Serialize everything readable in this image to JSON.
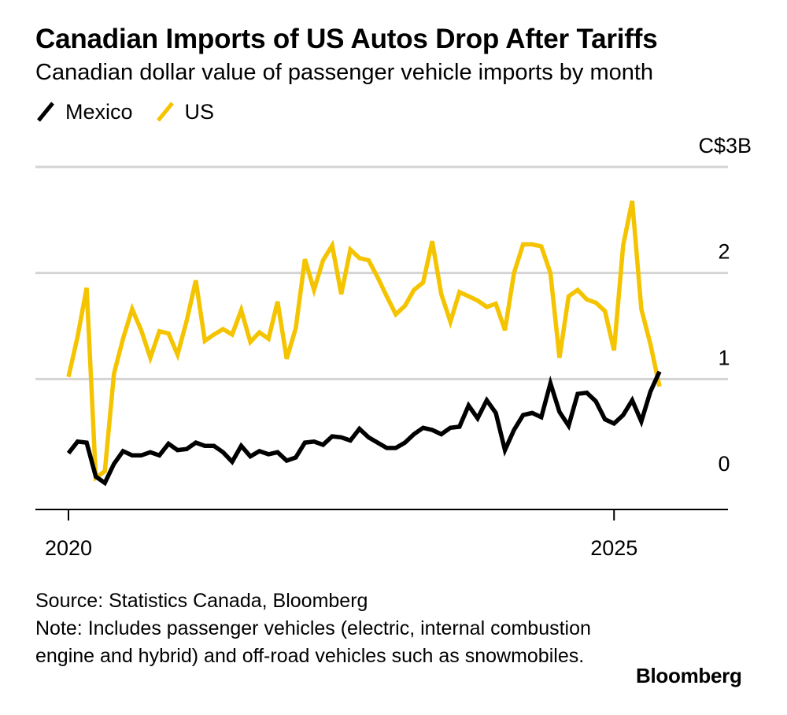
{
  "title": "Canadian Imports of US Autos Drop After Tariffs",
  "subtitle": "Canadian dollar value of passenger vehicle imports by month",
  "colors": {
    "mexico": "#000000",
    "us": "#f5c400",
    "grid": "#d4d4d4",
    "axis": "#000000"
  },
  "chart_data": {
    "type": "line",
    "title": "Canadian Imports of US Autos Drop After Tariffs",
    "subtitle": "Canadian dollar value of passenger vehicle imports by month",
    "ylabel": "C$ billions",
    "ylim": [
      -0.2,
      3
    ],
    "y_ticks": [
      {
        "value": 3,
        "label": "C$3B"
      },
      {
        "value": 2,
        "label": "2"
      },
      {
        "value": 1,
        "label": "1"
      },
      {
        "value": 0,
        "label": "0"
      }
    ],
    "x_ticks": [
      {
        "index": 0,
        "label": "2020"
      },
      {
        "index": 60,
        "label": "2025"
      }
    ],
    "x_start": "2020-01",
    "x_end": "2025-01",
    "series": [
      {
        "name": "Mexico",
        "color": "#000000",
        "values": [
          0.3,
          0.41,
          0.4,
          0.08,
          0.02,
          0.2,
          0.32,
          0.28,
          0.28,
          0.31,
          0.28,
          0.39,
          0.33,
          0.34,
          0.4,
          0.37,
          0.37,
          0.31,
          0.22,
          0.37,
          0.27,
          0.32,
          0.29,
          0.31,
          0.23,
          0.26,
          0.4,
          0.41,
          0.38,
          0.46,
          0.45,
          0.42,
          0.53,
          0.45,
          0.4,
          0.35,
          0.35,
          0.4,
          0.48,
          0.54,
          0.52,
          0.48,
          0.54,
          0.55,
          0.75,
          0.63,
          0.8,
          0.68,
          0.33,
          0.52,
          0.66,
          0.68,
          0.64,
          0.96,
          0.69,
          0.56,
          0.86,
          0.87,
          0.79,
          0.62,
          0.58,
          0.66,
          0.8,
          0.6,
          0.88,
          1.07
        ]
      },
      {
        "name": "US",
        "color": "#f5c400",
        "values": [
          1.02,
          1.4,
          1.86,
          0.07,
          0.13,
          1.05,
          1.38,
          1.66,
          1.46,
          1.2,
          1.45,
          1.43,
          1.23,
          1.55,
          1.93,
          1.36,
          1.42,
          1.47,
          1.42,
          1.65,
          1.35,
          1.44,
          1.38,
          1.73,
          1.19,
          1.48,
          2.13,
          1.84,
          2.12,
          2.26,
          1.8,
          2.22,
          2.14,
          2.12,
          1.96,
          1.78,
          1.61,
          1.69,
          1.84,
          1.91,
          2.3,
          1.8,
          1.54,
          1.82,
          1.78,
          1.74,
          1.68,
          1.71,
          1.46,
          2.0,
          2.27,
          2.27,
          2.25,
          2.0,
          1.2,
          1.78,
          1.84,
          1.75,
          1.72,
          1.64,
          1.27,
          2.26,
          2.68,
          1.66,
          1.33,
          0.93
        ]
      }
    ]
  },
  "legend": [
    {
      "label": "Mexico",
      "color": "#000000"
    },
    {
      "label": "US",
      "color": "#f5c400"
    }
  ],
  "footer": {
    "source": "Source: Statistics Canada, Bloomberg",
    "note": "Note: Includes passenger vehicles (electric, internal combustion engine and hybrid) and off-road vehicles such as snowmobiles.",
    "brand": "Bloomberg"
  }
}
